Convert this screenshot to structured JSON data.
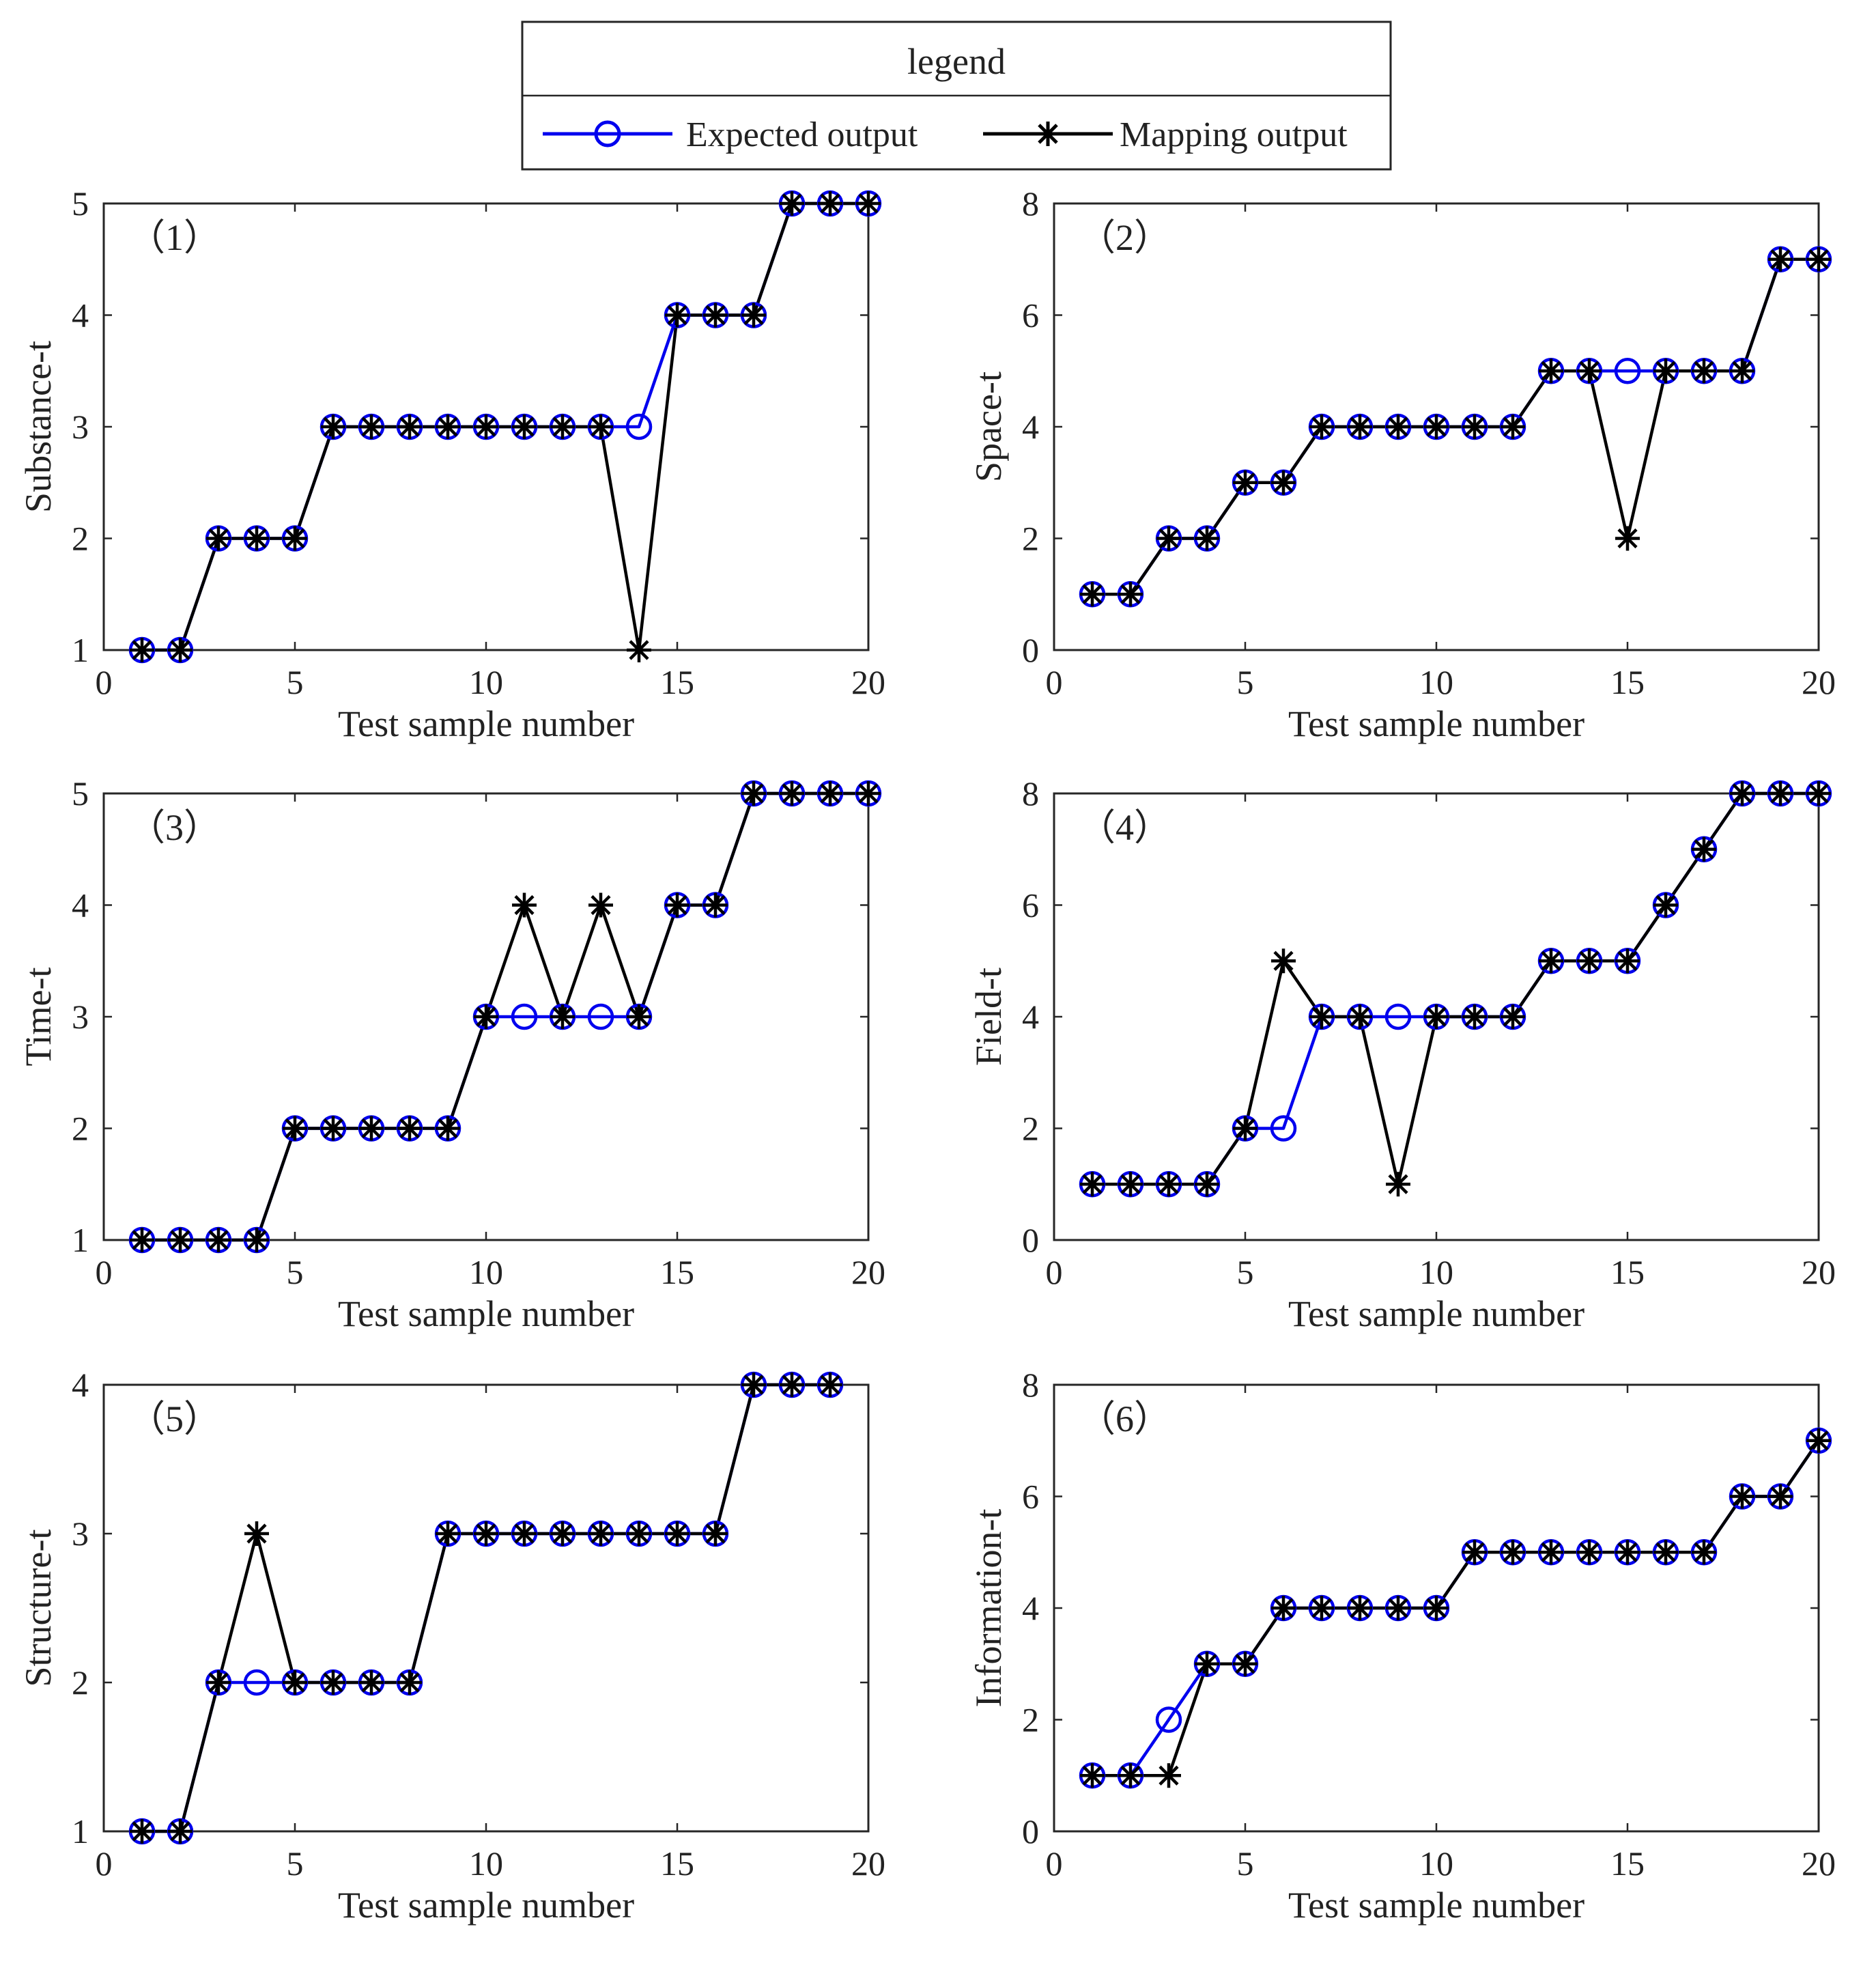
{
  "legend": {
    "title": "legend",
    "expected_label": "Expected output",
    "mapping_label": "Mapping output"
  },
  "colors": {
    "expected": "#0000ee",
    "mapping": "#000000",
    "axis": "#262626",
    "background": "#ffffff"
  },
  "chart_data": [
    {
      "type": "line",
      "panel_label": "（1）",
      "xlabel": "Test sample number",
      "ylabel": "Substance-t",
      "xlim": [
        0,
        20
      ],
      "ylim": [
        1,
        5
      ],
      "xticks": [
        0,
        5,
        10,
        15,
        20
      ],
      "yticks": [
        1,
        2,
        3,
        4,
        5
      ],
      "x": [
        1,
        2,
        3,
        4,
        5,
        6,
        7,
        8,
        9,
        10,
        11,
        12,
        13,
        14,
        15,
        16,
        17,
        18,
        19,
        20
      ],
      "series": [
        {
          "name": "Expected output",
          "values": [
            1,
            1,
            2,
            2,
            2,
            3,
            3,
            3,
            3,
            3,
            3,
            3,
            3,
            3,
            4,
            4,
            4,
            5,
            5,
            5
          ]
        },
        {
          "name": "Mapping output",
          "values": [
            1,
            1,
            2,
            2,
            2,
            3,
            3,
            3,
            3,
            3,
            3,
            3,
            3,
            1,
            4,
            4,
            4,
            5,
            5,
            5
          ]
        }
      ]
    },
    {
      "type": "line",
      "panel_label": "（2）",
      "xlabel": "Test sample number",
      "ylabel": "Space-t",
      "xlim": [
        0,
        20
      ],
      "ylim": [
        0,
        8
      ],
      "xticks": [
        0,
        5,
        10,
        15,
        20
      ],
      "yticks": [
        0,
        2,
        4,
        6,
        8
      ],
      "x": [
        1,
        2,
        3,
        4,
        5,
        6,
        7,
        8,
        9,
        10,
        11,
        12,
        13,
        14,
        15,
        16,
        17,
        18,
        19,
        20
      ],
      "series": [
        {
          "name": "Expected output",
          "values": [
            1,
            1,
            2,
            2,
            3,
            3,
            4,
            4,
            4,
            4,
            4,
            4,
            5,
            5,
            5,
            5,
            5,
            5,
            7,
            7
          ]
        },
        {
          "name": "Mapping output",
          "values": [
            1,
            1,
            2,
            2,
            3,
            3,
            4,
            4,
            4,
            4,
            4,
            4,
            5,
            5,
            2,
            5,
            5,
            5,
            7,
            7
          ]
        }
      ]
    },
    {
      "type": "line",
      "panel_label": "（3）",
      "xlabel": "Test sample number",
      "ylabel": "Time-t",
      "xlim": [
        0,
        20
      ],
      "ylim": [
        1,
        5
      ],
      "xticks": [
        0,
        5,
        10,
        15,
        20
      ],
      "yticks": [
        1,
        2,
        3,
        4,
        5
      ],
      "x": [
        1,
        2,
        3,
        4,
        5,
        6,
        7,
        8,
        9,
        10,
        11,
        12,
        13,
        14,
        15,
        16,
        17,
        18,
        19,
        20
      ],
      "series": [
        {
          "name": "Expected output",
          "values": [
            1,
            1,
            1,
            1,
            2,
            2,
            2,
            2,
            2,
            3,
            3,
            3,
            3,
            3,
            4,
            4,
            5,
            5,
            5,
            5
          ]
        },
        {
          "name": "Mapping output",
          "values": [
            1,
            1,
            1,
            1,
            2,
            2,
            2,
            2,
            2,
            3,
            4,
            3,
            4,
            3,
            4,
            4,
            5,
            5,
            5,
            5
          ]
        }
      ]
    },
    {
      "type": "line",
      "panel_label": "（4）",
      "xlabel": "Test sample number",
      "ylabel": "Field-t",
      "xlim": [
        0,
        20
      ],
      "ylim": [
        0,
        8
      ],
      "xticks": [
        0,
        5,
        10,
        15,
        20
      ],
      "yticks": [
        0,
        2,
        4,
        6,
        8
      ],
      "x": [
        1,
        2,
        3,
        4,
        5,
        6,
        7,
        8,
        9,
        10,
        11,
        12,
        13,
        14,
        15,
        16,
        17,
        18,
        19,
        20
      ],
      "series": [
        {
          "name": "Expected output",
          "values": [
            1,
            1,
            1,
            1,
            2,
            2,
            4,
            4,
            4,
            4,
            4,
            4,
            5,
            5,
            5,
            6,
            7,
            8,
            8,
            8
          ]
        },
        {
          "name": "Mapping output",
          "values": [
            1,
            1,
            1,
            1,
            2,
            5,
            4,
            4,
            1,
            4,
            4,
            4,
            5,
            5,
            5,
            6,
            7,
            8,
            8,
            8
          ]
        }
      ]
    },
    {
      "type": "line",
      "panel_label": "（5）",
      "xlabel": "Test sample number",
      "ylabel": "Structure-t",
      "xlim": [
        0,
        20
      ],
      "ylim": [
        1,
        4
      ],
      "xticks": [
        0,
        5,
        10,
        15,
        20
      ],
      "yticks": [
        1,
        2,
        3,
        4
      ],
      "x": [
        1,
        2,
        3,
        4,
        5,
        6,
        7,
        8,
        9,
        10,
        11,
        12,
        13,
        14,
        15,
        16,
        17,
        18,
        19
      ],
      "series": [
        {
          "name": "Expected output",
          "values": [
            1,
            1,
            2,
            2,
            2,
            2,
            2,
            2,
            3,
            3,
            3,
            3,
            3,
            3,
            3,
            3,
            4,
            4,
            4
          ]
        },
        {
          "name": "Mapping output",
          "values": [
            1,
            1,
            2,
            3,
            2,
            2,
            2,
            2,
            3,
            3,
            3,
            3,
            3,
            3,
            3,
            3,
            4,
            4,
            4
          ]
        }
      ]
    },
    {
      "type": "line",
      "panel_label": "（6）",
      "xlabel": "Test sample number",
      "ylabel": "Information-t",
      "xlim": [
        0,
        20
      ],
      "ylim": [
        0,
        8
      ],
      "xticks": [
        0,
        5,
        10,
        15,
        20
      ],
      "yticks": [
        0,
        2,
        4,
        6,
        8
      ],
      "x": [
        1,
        2,
        3,
        4,
        5,
        6,
        7,
        8,
        9,
        10,
        11,
        12,
        13,
        14,
        15,
        16,
        17,
        18,
        19,
        20
      ],
      "series": [
        {
          "name": "Expected output",
          "values": [
            1,
            1,
            2,
            3,
            3,
            4,
            4,
            4,
            4,
            4,
            5,
            5,
            5,
            5,
            5,
            5,
            5,
            6,
            6,
            7
          ]
        },
        {
          "name": "Mapping output",
          "values": [
            1,
            1,
            1,
            3,
            3,
            4,
            4,
            4,
            4,
            4,
            5,
            5,
            5,
            5,
            5,
            5,
            5,
            6,
            6,
            7
          ]
        }
      ]
    }
  ]
}
